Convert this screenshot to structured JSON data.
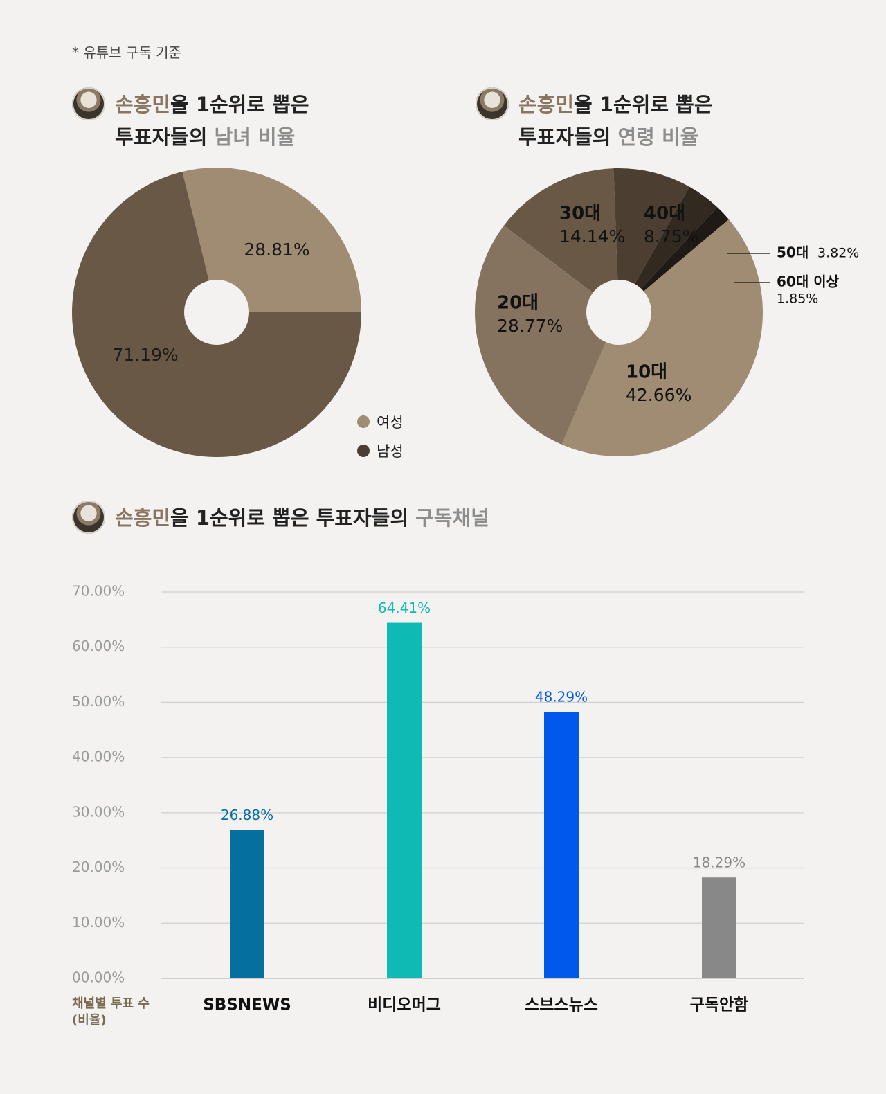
{
  "note": "* 유튜브 구독 기준",
  "titles": {
    "gender": {
      "name": "손흥민",
      "line1_rest": "을 1순위로 뽑은",
      "line2_prefix": "투표자들의 ",
      "line2_hl": "남녀 비율"
    },
    "age": {
      "name": "손흥민",
      "line1_rest": "을 1순위로 뽑은",
      "line2_prefix": "투표자들의 ",
      "line2_hl": "연령 비율"
    },
    "channel": {
      "name": "손흥민",
      "rest": "을 1순위로 뽑은 투표자들의 ",
      "hl": "구독채널"
    }
  },
  "colors": {
    "female": "#a08c72",
    "male": "#685845",
    "age10": "#a08c72",
    "age20": "#857360",
    "age30": "#685845",
    "age40": "#4c3f32",
    "age50": "#322921",
    "age60": "#1f1a15",
    "sbsnews": "#05709f",
    "videomug": "#0fbab4",
    "subusnews": "#0159ec",
    "none": "#888888"
  },
  "chart_data": [
    {
      "type": "pie",
      "title": "손흥민을 1순위로 뽑은 투표자들의 남녀 비율",
      "slices": [
        {
          "label": "여성",
          "value": 28.81,
          "display": "28.81%",
          "color": "#a08c72"
        },
        {
          "label": "남성",
          "value": 71.19,
          "display": "71.19%",
          "color": "#685845"
        }
      ],
      "legend": [
        "여성",
        "남성"
      ],
      "legend_position": "bottom-right"
    },
    {
      "type": "pie",
      "title": "손흥민을 1순위로 뽑은 투표자들의 연령 비율",
      "slices": [
        {
          "label": "10대",
          "value": 42.66,
          "display": "42.66%"
        },
        {
          "label": "20대",
          "value": 28.77,
          "display": "28.77%"
        },
        {
          "label": "30대",
          "value": 14.14,
          "display": "14.14%"
        },
        {
          "label": "40대",
          "value": 8.75,
          "display": "8.75%"
        },
        {
          "label": "50대",
          "value": 3.82,
          "display": "3.82%"
        },
        {
          "label": "60대 이상",
          "value": 1.85,
          "display": "1.85%"
        }
      ]
    },
    {
      "type": "bar",
      "title": "손흥민을 1순위로 뽑은 투표자들의 구독채널",
      "categories": [
        "SBSNEWS",
        "비디오머그",
        "스브스뉴스",
        "구독안함"
      ],
      "values": [
        26.88,
        64.41,
        48.29,
        18.29
      ],
      "value_labels": [
        "26.88%",
        "64.41%",
        "48.29%",
        "18.29%"
      ],
      "ylim": [
        0,
        70
      ],
      "yticks": [
        "00.00%",
        "10.00%",
        "20.00%",
        "30.00%",
        "40.00%",
        "50.00%",
        "60.00%",
        "70.00%"
      ],
      "ylabel": "채널별 투표 수\n(비율)",
      "grid": true
    }
  ]
}
